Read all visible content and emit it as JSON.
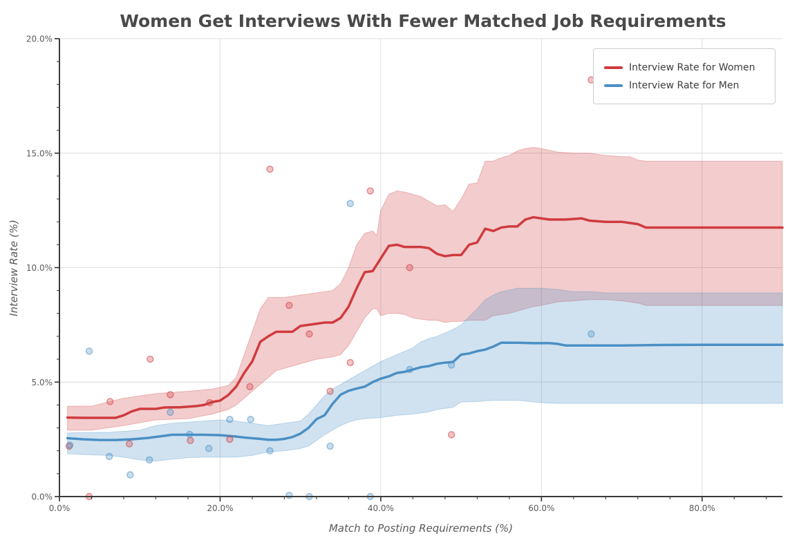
{
  "chart_data": {
    "type": "line",
    "title": "Women Get Interviews With Fewer Matched Job Requirements",
    "xlabel": "Match to Posting Requirements (%)",
    "ylabel": "Interview Rate (%)",
    "xlim": [
      0,
      90
    ],
    "ylim": [
      0,
      20
    ],
    "grid": "major-only",
    "legend_position": "upper-right",
    "colors": {
      "women": "#cf3b3e",
      "men": "#4a8fc4",
      "gridline": "#dcdcdc",
      "spine": "#3a3a3a",
      "tick_label": "#5a5a5a",
      "title": "#494949"
    },
    "xticks": {
      "major_values": [
        0,
        20,
        40,
        60,
        80
      ],
      "major_labels": [
        "0.0%",
        "20.0%",
        "40.0%",
        "60.0%",
        "80.0%"
      ],
      "minor_step": 4,
      "minor_max": 88
    },
    "yticks": {
      "major_values": [
        0,
        5,
        10,
        15,
        20
      ],
      "major_labels": [
        "0.0%",
        "5.0%",
        "10.0%",
        "15.0%",
        "20.0%"
      ],
      "minor_step": 1
    },
    "legend": {
      "entries": [
        {
          "label": "Interview Rate for Women"
        },
        {
          "label": "Interview Rate for Men"
        }
      ]
    },
    "series": [
      {
        "name": "Interview Rate for Women",
        "color": "#cf3b3e",
        "line": {
          "x": [
            1,
            3,
            5,
            7,
            8,
            9,
            10,
            12,
            13,
            15,
            17,
            18,
            19,
            20,
            21,
            22,
            23,
            24,
            25,
            26,
            27,
            28,
            29,
            30,
            31,
            32,
            33,
            34,
            35,
            36,
            37,
            38,
            39,
            40,
            41,
            42,
            43,
            44,
            45,
            46,
            47,
            48,
            49,
            50,
            51,
            52,
            53,
            54,
            55,
            56,
            57,
            58,
            59,
            60,
            61,
            63,
            65,
            66,
            68,
            70,
            71,
            72,
            73,
            75,
            80,
            85,
            90
          ],
          "y": [
            3.45,
            3.44,
            3.44,
            3.44,
            3.55,
            3.72,
            3.83,
            3.83,
            3.89,
            3.9,
            3.95,
            4.0,
            4.13,
            4.19,
            4.43,
            4.8,
            5.4,
            5.9,
            6.76,
            7.0,
            7.2,
            7.2,
            7.2,
            7.45,
            7.5,
            7.55,
            7.6,
            7.6,
            7.8,
            8.3,
            9.1,
            9.8,
            9.85,
            10.4,
            10.95,
            11.0,
            10.9,
            10.9,
            10.9,
            10.85,
            10.6,
            10.5,
            10.55,
            10.55,
            11.0,
            11.1,
            11.7,
            11.6,
            11.75,
            11.8,
            11.8,
            12.1,
            12.2,
            12.15,
            12.1,
            12.1,
            12.15,
            12.05,
            12.0,
            12.0,
            11.95,
            11.9,
            11.75,
            11.75,
            11.75,
            11.75,
            11.75
          ]
        },
        "band": {
          "x": [
            1,
            4,
            8,
            12,
            16,
            19,
            21,
            22,
            23,
            24,
            25,
            26,
            27,
            28,
            30,
            32,
            34,
            35,
            36,
            37,
            38,
            39,
            39.5,
            40,
            41,
            42,
            43,
            44,
            45,
            46,
            47,
            48,
            49,
            50,
            51,
            52,
            53,
            54,
            55,
            56,
            57,
            58,
            59,
            60,
            62,
            64,
            66,
            68,
            70,
            71,
            72,
            73,
            75,
            80,
            85,
            90
          ],
          "upper": [
            3.95,
            3.95,
            4.3,
            4.5,
            4.6,
            4.7,
            4.85,
            5.2,
            6.2,
            7.2,
            8.2,
            8.7,
            8.7,
            8.7,
            8.8,
            8.9,
            9.0,
            9.3,
            10.0,
            11.0,
            11.5,
            11.6,
            11.4,
            12.5,
            13.2,
            13.35,
            13.3,
            13.2,
            13.1,
            12.9,
            12.7,
            12.75,
            12.45,
            13.0,
            13.65,
            13.7,
            14.65,
            14.65,
            14.8,
            14.9,
            15.1,
            15.2,
            15.25,
            15.2,
            15.05,
            15.0,
            15.0,
            14.9,
            14.85,
            14.85,
            14.7,
            14.65,
            14.65,
            14.65,
            14.65,
            14.65
          ],
          "lower": [
            2.9,
            2.9,
            3.1,
            3.35,
            3.4,
            3.6,
            3.8,
            4.0,
            4.3,
            4.6,
            4.9,
            5.2,
            5.5,
            5.6,
            5.8,
            6.0,
            6.1,
            6.2,
            6.6,
            7.2,
            7.8,
            8.2,
            8.2,
            7.9,
            8.0,
            8.0,
            7.95,
            7.8,
            7.75,
            7.7,
            7.7,
            7.6,
            7.65,
            7.65,
            7.7,
            7.7,
            7.7,
            7.9,
            7.95,
            8.0,
            8.1,
            8.2,
            8.3,
            8.35,
            8.5,
            8.55,
            8.6,
            8.6,
            8.55,
            8.5,
            8.45,
            8.35,
            8.35,
            8.35,
            8.35,
            8.35
          ]
        },
        "scatter": {
          "x": [
            1.2,
            3.7,
            6.3,
            8.7,
            11.3,
            13.8,
            16.3,
            18.7,
            21.2,
            23.7,
            26.2,
            28.6,
            31.1,
            33.7,
            36.2,
            38.7,
            43.6,
            48.8,
            66.2
          ],
          "y": [
            2.2,
            0.0,
            4.15,
            2.3,
            6.0,
            4.45,
            2.45,
            4.1,
            2.5,
            4.8,
            14.3,
            8.35,
            7.1,
            4.6,
            5.85,
            13.35,
            10.0,
            2.7,
            18.2
          ]
        }
      },
      {
        "name": "Interview Rate for Men",
        "color": "#4a8fc4",
        "line": {
          "x": [
            1,
            3,
            5,
            7,
            9,
            11,
            13,
            14,
            16,
            18,
            20,
            21,
            22,
            23,
            24,
            25,
            26,
            27,
            28,
            29,
            30,
            31,
            32,
            33,
            34,
            35,
            36,
            37,
            38,
            39,
            40,
            41,
            42,
            43,
            44,
            45,
            46,
            47,
            48,
            49,
            50,
            51,
            52,
            53,
            54,
            55,
            57,
            59,
            61,
            62,
            63,
            65,
            70,
            75,
            80,
            85,
            90
          ],
          "y": [
            2.55,
            2.5,
            2.47,
            2.47,
            2.5,
            2.56,
            2.65,
            2.7,
            2.7,
            2.7,
            2.68,
            2.65,
            2.62,
            2.58,
            2.55,
            2.52,
            2.48,
            2.48,
            2.52,
            2.6,
            2.75,
            3.0,
            3.38,
            3.55,
            4.05,
            4.45,
            4.62,
            4.72,
            4.8,
            5.0,
            5.15,
            5.25,
            5.4,
            5.45,
            5.55,
            5.65,
            5.7,
            5.8,
            5.85,
            5.88,
            6.2,
            6.25,
            6.35,
            6.42,
            6.55,
            6.72,
            6.72,
            6.7,
            6.7,
            6.67,
            6.6,
            6.6,
            6.6,
            6.62,
            6.63,
            6.63,
            6.63
          ]
        },
        "band": {
          "x": [
            1,
            4,
            6,
            8,
            10,
            12,
            14,
            16,
            18,
            20,
            22,
            24,
            26,
            28,
            30,
            31,
            32,
            33,
            34,
            35,
            36,
            37,
            38,
            40,
            42,
            44,
            45,
            46,
            47,
            48,
            49,
            50,
            52,
            53,
            54,
            55,
            57,
            60,
            62,
            64,
            66,
            68,
            70,
            73,
            75,
            80,
            85,
            90
          ],
          "upper": [
            2.78,
            2.8,
            2.8,
            2.85,
            2.9,
            3.1,
            3.2,
            3.25,
            3.3,
            3.35,
            3.3,
            3.2,
            3.1,
            3.2,
            3.3,
            3.6,
            4.0,
            4.4,
            4.7,
            4.9,
            5.1,
            5.3,
            5.5,
            5.9,
            6.2,
            6.5,
            6.76,
            6.9,
            7.0,
            7.15,
            7.3,
            7.5,
            8.2,
            8.6,
            8.8,
            8.95,
            9.1,
            9.1,
            9.05,
            8.95,
            8.95,
            8.9,
            8.9,
            8.9,
            8.9,
            8.9,
            8.9,
            8.9
          ],
          "lower": [
            1.87,
            1.82,
            1.8,
            1.72,
            1.6,
            1.55,
            1.63,
            1.7,
            1.72,
            1.72,
            1.72,
            1.8,
            1.95,
            2.0,
            2.1,
            2.2,
            2.45,
            2.7,
            2.9,
            3.1,
            3.25,
            3.35,
            3.4,
            3.45,
            3.55,
            3.6,
            3.65,
            3.7,
            3.8,
            3.85,
            3.9,
            4.13,
            4.15,
            4.18,
            4.2,
            4.2,
            4.2,
            4.1,
            4.07,
            4.07,
            4.07,
            4.07,
            4.07,
            4.07,
            4.07,
            4.07,
            4.07,
            4.07
          ]
        },
        "scatter": {
          "x": [
            1.3,
            3.7,
            6.2,
            8.8,
            11.2,
            13.8,
            16.2,
            18.6,
            21.2,
            23.8,
            26.2,
            28.6,
            31.1,
            33.7,
            36.2,
            38.7,
            43.6,
            48.8,
            66.2
          ],
          "y": [
            2.25,
            6.35,
            1.75,
            0.95,
            1.6,
            3.68,
            2.72,
            2.1,
            3.37,
            3.37,
            2.0,
            0.05,
            0.0,
            2.2,
            12.8,
            0.0,
            5.55,
            5.75,
            7.1
          ]
        }
      }
    ]
  }
}
